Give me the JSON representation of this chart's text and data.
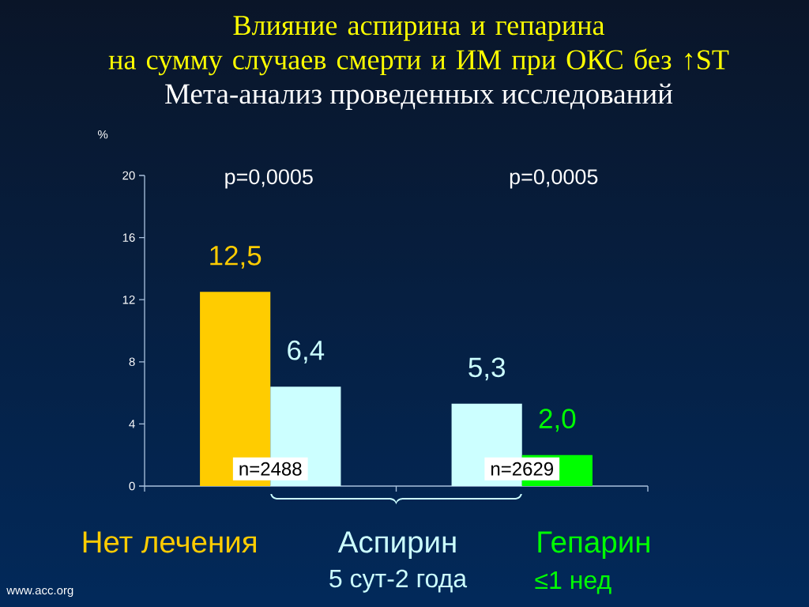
{
  "chart_data": {
    "type": "bar",
    "title": "Влияние аспирина и гепарина\nна сумму случаев смерти и ИМ при ОКС без ↑ST",
    "subtitle": "Мета-анализ проведенных исследований",
    "ylabel": "%",
    "categories": [
      "n=2488",
      "n=2629"
    ],
    "series": [
      {
        "name": "Нет лечения",
        "color": "#ffcc00",
        "values": [
          12.5,
          null
        ],
        "value_labels": [
          "12,5",
          null
        ]
      },
      {
        "name": "Аспирин",
        "color": "#ccffff",
        "values": [
          6.4,
          5.3
        ],
        "value_labels": [
          "6,4",
          "5,3"
        ]
      },
      {
        "name": "Гепарин",
        "color": "#00ff00",
        "values": [
          null,
          2.0
        ],
        "value_labels": [
          null,
          "2,0"
        ]
      }
    ],
    "ylim": [
      0,
      20
    ],
    "yticks": [
      0,
      4,
      8,
      12,
      16,
      20
    ],
    "annotations": [
      "p=0,0005",
      "p=0,0005",
      "5 сут-2 года",
      "≤1 нед",
      "www.acc.org"
    ]
  }
}
